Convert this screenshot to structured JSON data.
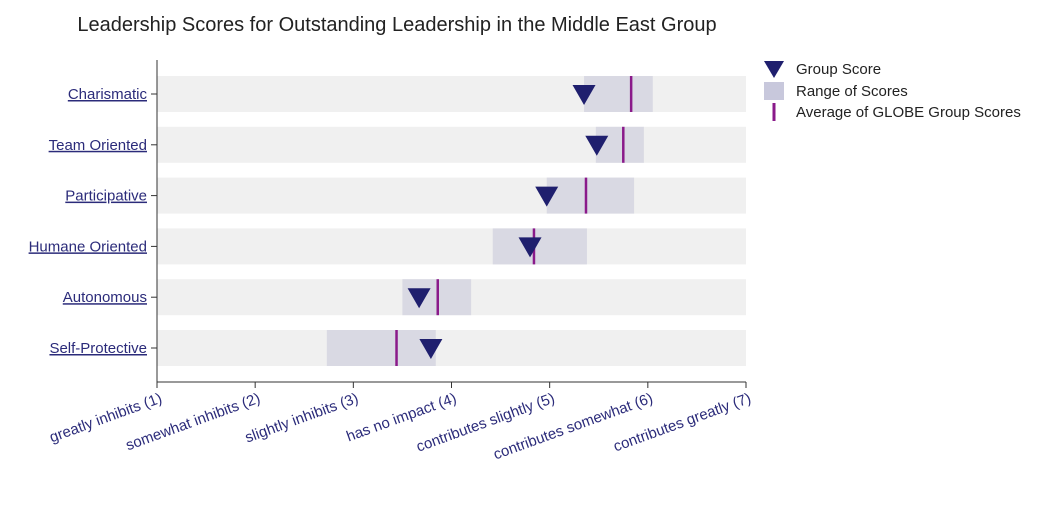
{
  "chart_data": {
    "type": "bar",
    "title": "Leadership Scores for Outstanding Leadership in the Middle East Group",
    "categories": [
      "Charismatic",
      "Team Oriented",
      "Participative",
      "Humane Oriented",
      "Autonomous",
      "Self-Protective"
    ],
    "x_ticks": [
      "greatly inhibits (1)",
      "somewhat inhibits (2)",
      "slightly inhibits (3)",
      "has no impact (4)",
      "contributes slightly (5)",
      "contributes somewhat (6)",
      "contributes greatly (7)"
    ],
    "xlim": [
      1,
      7
    ],
    "series": [
      {
        "name": "Group Score",
        "values": [
          5.35,
          5.48,
          4.97,
          4.8,
          3.67,
          3.79
        ]
      },
      {
        "name": "Range of Scores",
        "ranges": [
          [
            5.35,
            6.05
          ],
          [
            5.47,
            5.96
          ],
          [
            4.97,
            5.86
          ],
          [
            4.42,
            5.38
          ],
          [
            3.5,
            4.2
          ],
          [
            2.73,
            3.84
          ]
        ]
      },
      {
        "name": "Average of GLOBE Group Scores",
        "values": [
          5.83,
          5.75,
          5.37,
          4.84,
          3.86,
          3.44
        ]
      }
    ],
    "legend_position": "top-right",
    "colors": {
      "group_score": "#1f1f6e",
      "range": "#d9d9e3",
      "range_legend": "#c8c8dc",
      "average": "#8a1a8a",
      "band": "#f0f0f0",
      "category_text": "#2b2b7a"
    }
  }
}
